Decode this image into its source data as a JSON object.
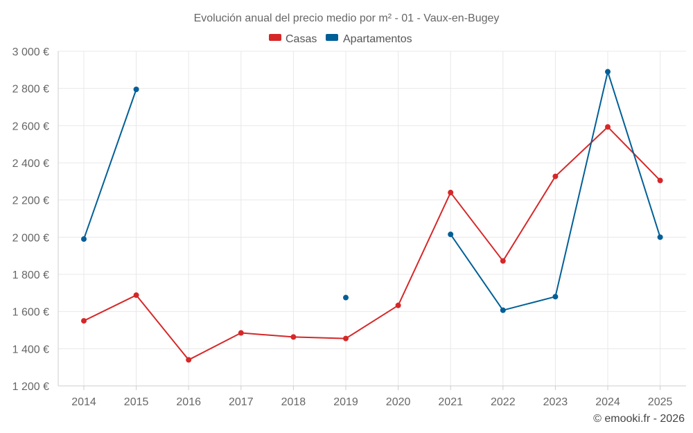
{
  "chart_data": {
    "type": "line",
    "title": "Evolución anual del precio medio por m² - 01 - Vaux-en-Bugey",
    "categories": [
      "2014",
      "2015",
      "2016",
      "2017",
      "2018",
      "2019",
      "2020",
      "2021",
      "2022",
      "2023",
      "2024",
      "2025"
    ],
    "y_ticks": [
      1200,
      1400,
      1600,
      1800,
      2000,
      2200,
      2400,
      2600,
      2800,
      3000
    ],
    "y_tick_labels": [
      "1 200 €",
      "1 400 €",
      "1 600 €",
      "1 800 €",
      "2 000 €",
      "2 200 €",
      "2 400 €",
      "2 600 €",
      "2 800 €",
      "3 000 €"
    ],
    "ylim": [
      1200,
      3000
    ],
    "grid": true,
    "legend_position": "top-center",
    "series": [
      {
        "name": "Casas",
        "color": "#d62728",
        "values": [
          1550,
          1688,
          1340,
          1485,
          1463,
          1455,
          1633,
          2240,
          1872,
          2327,
          2593,
          2305
        ]
      },
      {
        "name": "Apartamentos",
        "color": "#005f96",
        "values": [
          1990,
          2795,
          null,
          null,
          null,
          1675,
          null,
          2015,
          1607,
          1680,
          2890,
          2000
        ]
      }
    ],
    "credit": "© emooki.fr - 2026"
  }
}
